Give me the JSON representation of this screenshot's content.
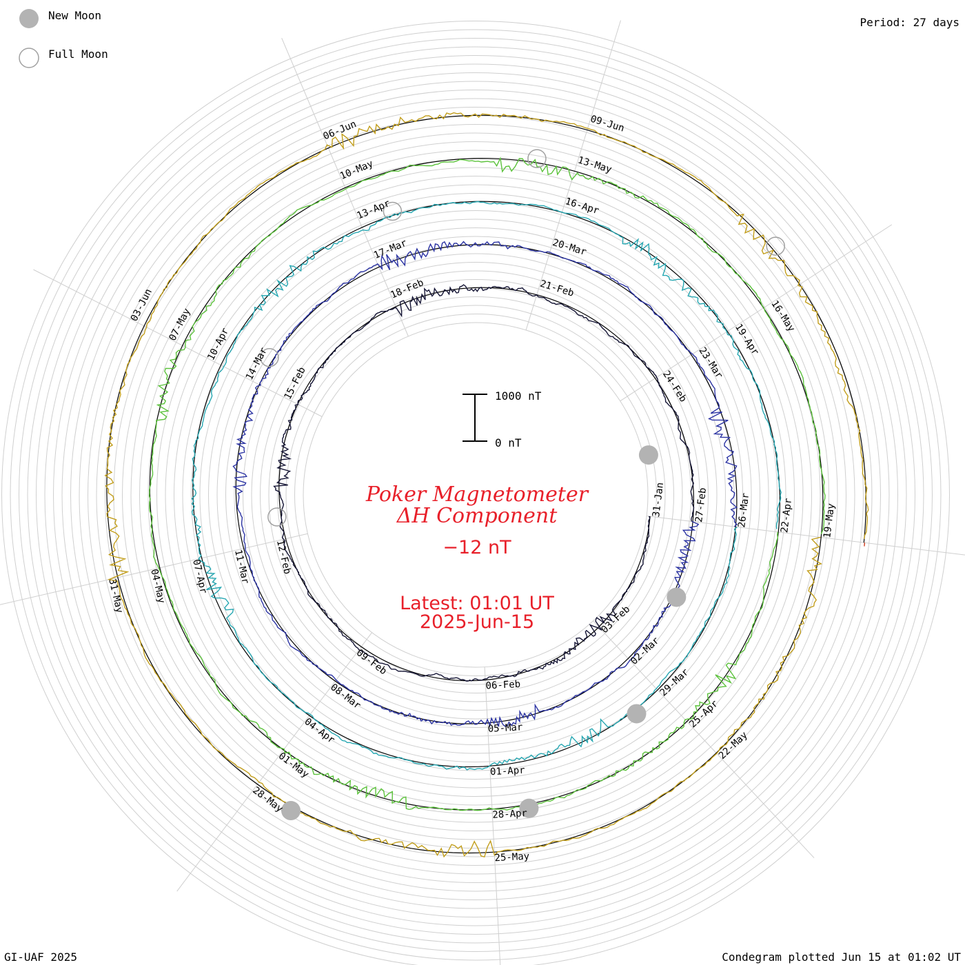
{
  "legend": {
    "new_moon_label": "New Moon",
    "full_moon_label": "Full Moon",
    "moon_fill": "#b3b3b3",
    "moon_stroke": "#a0a0a0"
  },
  "period_label": "Period: 27 days",
  "footer": {
    "left": "GI-UAF 2025",
    "right": "Condegram plotted Jun 15 at 01:02 UT"
  },
  "scale_bar": {
    "top_label": "1000 nT",
    "bottom_label": "0 nT",
    "range_nT": [
      0,
      1000
    ]
  },
  "center": {
    "title_line1": "Poker Magnetometer",
    "title_line2": "ΔH Component",
    "current_value": "−12 nT",
    "latest_line1": "Latest: 01:01 UT",
    "latest_line2": "2025-Jun-15"
  },
  "chart_data": {
    "type": "line",
    "layout": "condegram-spiral",
    "period_days": 27,
    "quantity": "ΔH Component",
    "units": "nT",
    "start_date": "2025-01-31",
    "end_date": "2025-06-15",
    "latest_value_nT": -12,
    "rotations": [
      {
        "color": "#151535",
        "labels": [
          "31-Jan",
          "03-Feb",
          "06-Feb",
          "09-Feb",
          "12-Feb",
          "15-Feb",
          "18-Feb",
          "21-Feb",
          "24-Feb"
        ]
      },
      {
        "color": "#2b33a3",
        "labels": [
          "27-Feb",
          "02-Mar",
          "05-Mar",
          "08-Mar",
          "11-Mar",
          "14-Mar",
          "17-Mar",
          "20-Mar",
          "23-Mar"
        ]
      },
      {
        "color": "#26a7b2",
        "labels": [
          "26-Mar",
          "29-Mar",
          "01-Apr",
          "04-Apr",
          "07-Apr",
          "10-Apr",
          "13-Apr",
          "16-Apr",
          "19-Apr"
        ]
      },
      {
        "color": "#5cc23c",
        "labels": [
          "22-Apr",
          "25-Apr",
          "28-Apr",
          "01-May",
          "04-May",
          "07-May",
          "10-May",
          "13-May",
          "16-May"
        ]
      },
      {
        "color": "#c29e1c",
        "labels": [
          "19-May",
          "22-May",
          "25-May",
          "28-May",
          "31-May",
          "03-Jun",
          "06-Jun",
          "09-Jun"
        ]
      }
    ],
    "new_moons": [
      "2025-01-29",
      "2025-02-28",
      "2025-03-29",
      "2025-04-27",
      "2025-05-27"
    ],
    "full_moons": [
      "2025-02-12",
      "2025-03-14",
      "2025-04-13",
      "2025-05-12",
      "2025-06-11"
    ]
  }
}
